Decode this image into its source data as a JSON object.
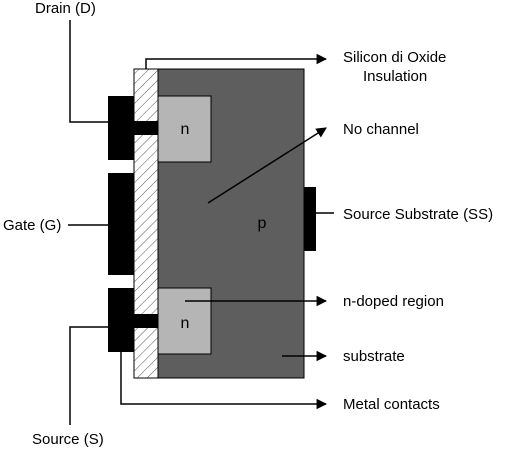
{
  "labels": {
    "drain": "Drain (D)",
    "gate": "Gate (G)",
    "source": "Source (S)",
    "oxide_line1": "Silicon di Oxide",
    "oxide_line2": "Insulation",
    "no_channel": "No channel",
    "source_substrate": "Source Substrate (SS)",
    "n_doped_region": "n-doped region",
    "substrate": "substrate",
    "metal_contacts": "Metal contacts"
  },
  "regions": {
    "n_top": "n",
    "n_bottom": "n",
    "p_body": "p"
  },
  "colors": {
    "substrate_fill": "#5e5e5e",
    "n_region_fill": "#b5b5b5",
    "metal_fill": "#000000",
    "oxide_hatch": "#555555",
    "line": "#000000"
  }
}
